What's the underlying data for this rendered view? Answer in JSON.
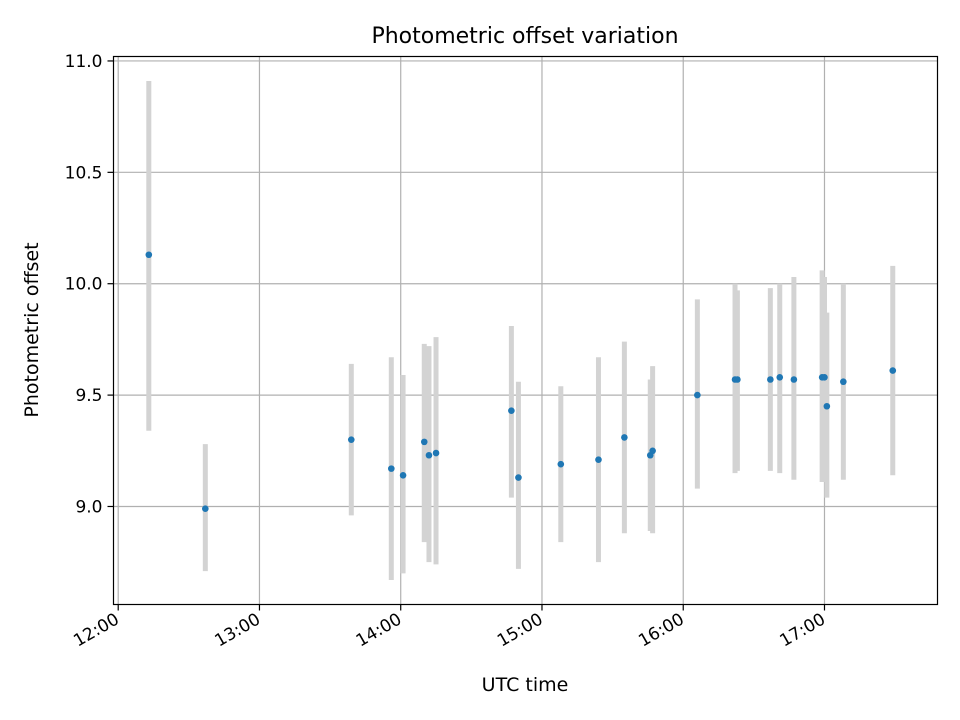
{
  "chart_data": {
    "type": "scatter",
    "title": "Photometric offset variation",
    "xlabel": "UTC time",
    "ylabel": "Photometric offset",
    "x_tick_labels": [
      "12:00",
      "13:00",
      "14:00",
      "15:00",
      "16:00",
      "17:00"
    ],
    "y_tick_labels": [
      "9.0",
      "9.5",
      "10.0",
      "10.5",
      "11.0"
    ],
    "xlim": [
      "11:58",
      "17:48"
    ],
    "ylim": [
      8.56,
      11.02
    ],
    "grid": true,
    "legend": "none",
    "error_bars": true,
    "series": [
      {
        "points": [
          {
            "x": "12:13",
            "y": 10.13,
            "err_low": 9.34,
            "err_high": 10.91
          },
          {
            "x": "12:37",
            "y": 8.99,
            "err_low": 8.71,
            "err_high": 9.28
          },
          {
            "x": "13:39",
            "y": 9.3,
            "err_low": 8.96,
            "err_high": 9.64
          },
          {
            "x": "13:56",
            "y": 9.17,
            "err_low": 8.67,
            "err_high": 9.67
          },
          {
            "x": "14:01",
            "y": 9.14,
            "err_low": 8.7,
            "err_high": 9.59
          },
          {
            "x": "14:10",
            "y": 9.29,
            "err_low": 8.84,
            "err_high": 9.73
          },
          {
            "x": "14:12",
            "y": 9.23,
            "err_low": 8.75,
            "err_high": 9.72
          },
          {
            "x": "14:15",
            "y": 9.24,
            "err_low": 8.74,
            "err_high": 9.76
          },
          {
            "x": "14:47",
            "y": 9.43,
            "err_low": 9.04,
            "err_high": 9.81
          },
          {
            "x": "14:50",
            "y": 9.13,
            "err_low": 8.72,
            "err_high": 9.56
          },
          {
            "x": "15:08",
            "y": 9.19,
            "err_low": 8.84,
            "err_high": 9.54
          },
          {
            "x": "15:24",
            "y": 9.21,
            "err_low": 8.75,
            "err_high": 9.67
          },
          {
            "x": "15:35",
            "y": 9.31,
            "err_low": 8.88,
            "err_high": 9.74
          },
          {
            "x": "15:46",
            "y": 9.23,
            "err_low": 8.89,
            "err_high": 9.57
          },
          {
            "x": "15:47",
            "y": 9.25,
            "err_low": 8.88,
            "err_high": 9.63
          },
          {
            "x": "16:06",
            "y": 9.5,
            "err_low": 9.08,
            "err_high": 9.93
          },
          {
            "x": "16:22",
            "y": 9.57,
            "err_low": 9.15,
            "err_high": 10.0
          },
          {
            "x": "16:23",
            "y": 9.57,
            "err_low": 9.16,
            "err_high": 9.97
          },
          {
            "x": "16:37",
            "y": 9.57,
            "err_low": 9.16,
            "err_high": 9.98
          },
          {
            "x": "16:41",
            "y": 9.58,
            "err_low": 9.15,
            "err_high": 10.0
          },
          {
            "x": "16:47",
            "y": 9.57,
            "err_low": 9.12,
            "err_high": 10.03
          },
          {
            "x": "16:59",
            "y": 9.58,
            "err_low": 9.11,
            "err_high": 10.06
          },
          {
            "x": "17:00",
            "y": 9.58,
            "err_low": 9.12,
            "err_high": 10.03
          },
          {
            "x": "17:01",
            "y": 9.45,
            "err_low": 9.04,
            "err_high": 9.87
          },
          {
            "x": "17:08",
            "y": 9.56,
            "err_low": 9.12,
            "err_high": 10.0
          },
          {
            "x": "17:29",
            "y": 9.61,
            "err_low": 9.14,
            "err_high": 10.08
          }
        ]
      }
    ]
  },
  "colors": {
    "marker": "#1f77b4",
    "error_bar": "#d3d3d3",
    "grid": "#b0b0b0",
    "axes": "#000000"
  }
}
